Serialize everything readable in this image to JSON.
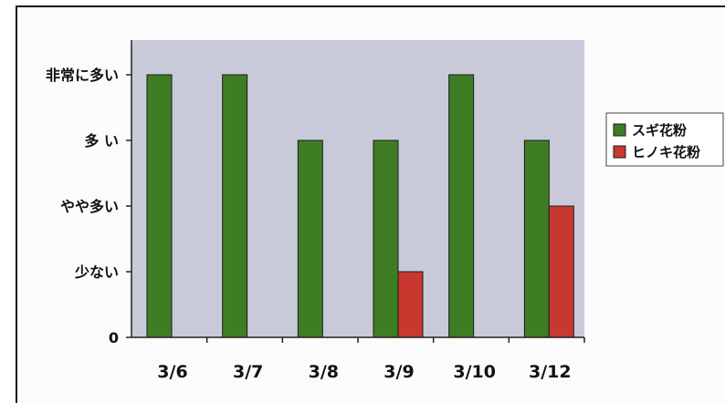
{
  "chart_data": {
    "type": "bar",
    "categories": [
      "3/6",
      "3/7",
      "3/8",
      "3/9",
      "3/10",
      "3/12"
    ],
    "y_levels": [
      "0",
      "少ない",
      "やや多い",
      "多 い",
      "非常に多い"
    ],
    "ylim": [
      0,
      4
    ],
    "series": [
      {
        "name": "スギ花粉",
        "color": "#3e7d24",
        "values": [
          4,
          4,
          3,
          3,
          4,
          3
        ]
      },
      {
        "name": "ヒノキ花粉",
        "color": "#c8382f",
        "values": [
          0,
          0,
          0,
          1,
          0,
          2
        ]
      }
    ],
    "plot_background": "#c9cad9",
    "legend_position": "right",
    "title": "",
    "xlabel": "",
    "ylabel": ""
  }
}
